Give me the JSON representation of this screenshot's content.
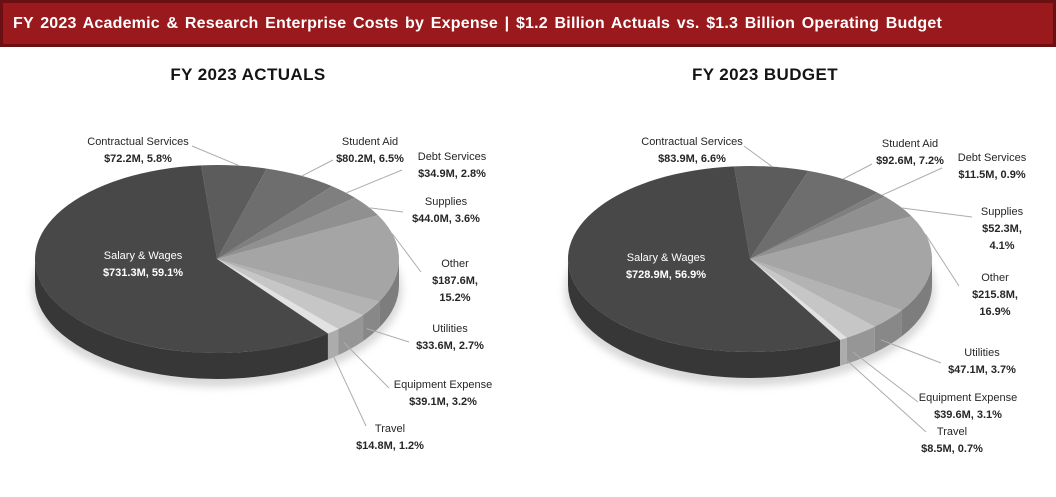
{
  "header": {
    "title": "FY 2023 Academic & Research Enterprise Costs by Expense | $1.2 Billion Actuals vs. $1.3 Billion Operating Budget",
    "bg_color": "#9a191c",
    "border_color": "#6a0f12",
    "text_color": "#ffffff"
  },
  "charts": [
    {
      "title": "FY 2023 ACTUALS"
    },
    {
      "title": "FY 2023 BUDGET"
    }
  ],
  "chart_data": [
    {
      "type": "pie",
      "title": "FY 2023 ACTUALS",
      "unit": "USD millions",
      "style": "3d-pie-grayscale",
      "start_angle_deg": -5,
      "clockwise_from_top": true,
      "categories": [
        "Contractual Services",
        "Student Aid",
        "Debt Services",
        "Supplies",
        "Other",
        "Utilities",
        "Equipment Expense",
        "Travel",
        "Salary & Wages"
      ],
      "values": [
        72.2,
        80.2,
        34.9,
        44.0,
        187.6,
        33.6,
        39.1,
        14.8,
        731.3
      ],
      "percentages": [
        5.8,
        6.5,
        2.8,
        3.6,
        15.2,
        2.7,
        3.2,
        1.2,
        59.1
      ],
      "value_labels": [
        "$72.2M, 5.8%",
        "$80.2M, 6.5%",
        "$34.9M, 2.8%",
        "$44.0M, 3.6%",
        "$187.6M, 15.2%",
        "$33.6M, 2.7%",
        "$39.1M, 3.2%",
        "$14.8M, 1.2%",
        "$731.3M, 59.1%"
      ],
      "colors": [
        "#5c5c5c",
        "#6e6e6e",
        "#7f7f7f",
        "#909090",
        "#a5a5a5",
        "#b3b3b3",
        "#c6c6c6",
        "#e2e2e2",
        "#484848"
      ]
    },
    {
      "type": "pie",
      "title": "FY 2023 BUDGET",
      "unit": "USD millions",
      "style": "3d-pie-grayscale",
      "start_angle_deg": -5,
      "clockwise_from_top": true,
      "categories": [
        "Contractual Services",
        "Student Aid",
        "Debt Services",
        "Supplies",
        "Other",
        "Utilities",
        "Equipment Expense",
        "Travel",
        "Salary & Wages"
      ],
      "values": [
        83.9,
        92.6,
        11.5,
        52.3,
        215.8,
        47.1,
        39.6,
        8.5,
        728.9
      ],
      "percentages": [
        6.6,
        7.2,
        0.9,
        4.1,
        16.9,
        3.7,
        3.1,
        0.7,
        56.9
      ],
      "value_labels": [
        "$83.9M, 6.6%",
        "$92.6M, 7.2%",
        "$11.5M, 0.9%",
        "$52.3M, 4.1%",
        "$215.8M, 16.9%",
        "$47.1M, 3.7%",
        "$39.6M, 3.1%",
        "$8.5M, 0.7%",
        "$728.9M, 56.9%"
      ],
      "colors": [
        "#5c5c5c",
        "#6e6e6e",
        "#7f7f7f",
        "#909090",
        "#a5a5a5",
        "#b3b3b3",
        "#c6c6c6",
        "#e2e2e2",
        "#484848"
      ]
    }
  ]
}
